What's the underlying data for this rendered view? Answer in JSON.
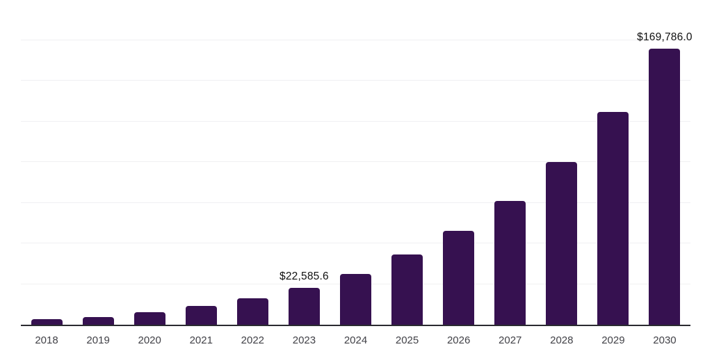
{
  "chart": {
    "background_color": "#ffffff",
    "bar_color": "#361150",
    "grid_color": "#f0f0f2",
    "axis_line_color": "#2a2a30",
    "tick_label_color": "#414147",
    "data_label_color": "#0f0f0f"
  },
  "chart_data": {
    "type": "bar",
    "title": "",
    "xlabel": "",
    "ylabel": "",
    "categories": [
      "2018",
      "2019",
      "2020",
      "2021",
      "2022",
      "2023",
      "2024",
      "2025",
      "2026",
      "2027",
      "2028",
      "2029",
      "2030"
    ],
    "values": [
      3400,
      4650,
      7900,
      11600,
      16200,
      22585.6,
      31300,
      43000,
      57800,
      76200,
      100000,
      130700,
      169786
    ],
    "ylim": [
      0,
      200000
    ],
    "grid_step": 25000,
    "grid": true,
    "legend": "none",
    "y_axis_labels_visible": false,
    "annotations": [
      {
        "category": "2023",
        "label": "$22,585.6"
      },
      {
        "category": "2030",
        "label": "$169,786.0"
      }
    ]
  }
}
